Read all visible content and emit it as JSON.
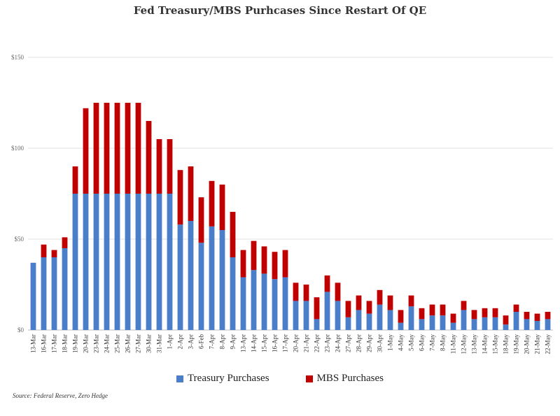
{
  "chart_data": {
    "type": "bar",
    "stacked": true,
    "title": "Fed Treasury/MBS Purhcases Since Restart Of QE",
    "source": "Source: Federal Reserve, Zero Hedge",
    "ylim": [
      0,
      150
    ],
    "yticks": [
      "$0",
      "$50",
      "$100",
      "$150"
    ],
    "ytick_values": [
      0,
      50,
      100,
      150
    ],
    "grid": true,
    "legend_position": "bottom",
    "categories": [
      "13-Mar",
      "16-Mar",
      "17-Mar",
      "18-Mar",
      "19-Mar",
      "20-Mar",
      "23-Mar",
      "24-Mar",
      "25-Mar",
      "26-Mar",
      "27-Mar",
      "30-Mar",
      "31-Mar",
      "1-Apr",
      "2-Apr",
      "3-Apr",
      "6-Feb",
      "7-Apr",
      "8-Apr",
      "9-Apr",
      "13-Apr",
      "14-Apr",
      "15-Apr",
      "16-Apr",
      "17-Apr",
      "20-Apr",
      "21-Apr",
      "22-Apr",
      "23-Apr",
      "24-Apr",
      "27-Apr",
      "28-Apr",
      "29-Apr",
      "30-Apr",
      "1-May",
      "4-May",
      "5-May",
      "6-May",
      "7-May",
      "8-May",
      "11-May",
      "12-May",
      "13-May",
      "14-May",
      "15-May",
      "18-May",
      "19-May",
      "20-May",
      "21-May",
      "22-May"
    ],
    "series": [
      {
        "name": "Treasury Purchases",
        "color": "#4a7ec9",
        "values": [
          37,
          40,
          40,
          45,
          75,
          75,
          75,
          75,
          75,
          75,
          75,
          75,
          75,
          75,
          58,
          60,
          48,
          57,
          55,
          40,
          29,
          33,
          31,
          28,
          29,
          16,
          16,
          6,
          21,
          16,
          7,
          11,
          9,
          14,
          11,
          4,
          13,
          6,
          8,
          8,
          4,
          11,
          6,
          7,
          7,
          3,
          10,
          6,
          5,
          6
        ]
      },
      {
        "name": "MBS Purchases",
        "color": "#c00000",
        "values": [
          0,
          7,
          4,
          6,
          15,
          47,
          50,
          50,
          50,
          50,
          50,
          40,
          30,
          30,
          30,
          30,
          25,
          25,
          25,
          25,
          15,
          16,
          15,
          15,
          15,
          10,
          9,
          12,
          9,
          10,
          9,
          8,
          7,
          8,
          8,
          7,
          6,
          6,
          6,
          6,
          5,
          5,
          5,
          5,
          5,
          5,
          4,
          4,
          4,
          4
        ]
      }
    ]
  }
}
